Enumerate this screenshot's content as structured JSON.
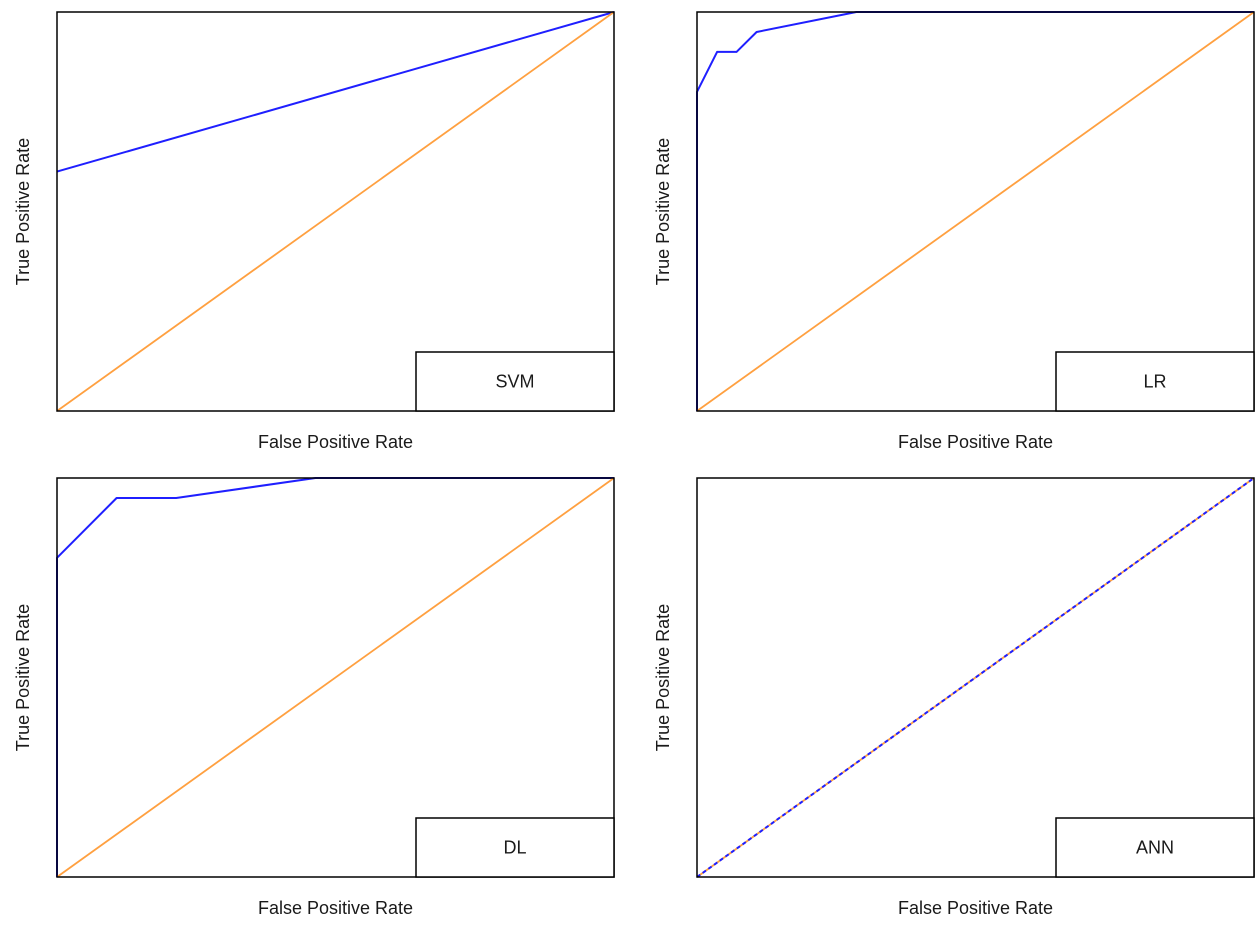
{
  "colors": {
    "roc": "#1f1fff",
    "chance": "#ffa040",
    "frame": "#000000"
  },
  "chart_data": [
    {
      "type": "line",
      "xlabel": "False Positive Rate",
      "ylabel": "True Positive Rate",
      "xlim": [
        0,
        1
      ],
      "ylim": [
        0,
        1
      ],
      "legend": {
        "label": "SVM",
        "placement": "bottom-right"
      },
      "series": [
        {
          "role": "roc",
          "x": [
            0,
            1
          ],
          "y": [
            0.6,
            1.0
          ]
        },
        {
          "role": "chance",
          "x": [
            0,
            1
          ],
          "y": [
            0,
            1
          ]
        }
      ]
    },
    {
      "type": "line",
      "xlabel": "False Positive Rate",
      "ylabel": "True Positive Rate",
      "xlim": [
        0,
        1
      ],
      "ylim": [
        0,
        1
      ],
      "legend": {
        "label": "LR",
        "placement": "bottom-right"
      },
      "series": [
        {
          "role": "roc",
          "x": [
            0,
            0,
            0.036,
            0.071,
            0.107,
            0.286,
            1
          ],
          "y": [
            0,
            0.8,
            0.9,
            0.9,
            0.95,
            1.0,
            1.0
          ]
        },
        {
          "role": "chance",
          "x": [
            0,
            1
          ],
          "y": [
            0,
            1
          ]
        }
      ]
    },
    {
      "type": "line",
      "xlabel": "False Positive Rate",
      "ylabel": "True Positive Rate",
      "xlim": [
        0,
        1
      ],
      "ylim": [
        0,
        1
      ],
      "legend": {
        "label": "DL",
        "placement": "bottom-right"
      },
      "series": [
        {
          "role": "roc",
          "x": [
            0,
            0,
            0.107,
            0.214,
            0.464,
            1
          ],
          "y": [
            0,
            0.8,
            0.95,
            0.95,
            1.0,
            1.0
          ]
        },
        {
          "role": "chance",
          "x": [
            0,
            1
          ],
          "y": [
            0,
            1
          ]
        }
      ]
    },
    {
      "type": "line",
      "xlabel": "False Positive Rate",
      "ylabel": "True Positive Rate",
      "xlim": [
        0,
        1
      ],
      "ylim": [
        0,
        1
      ],
      "legend": {
        "label": "ANN",
        "placement": "bottom-right"
      },
      "series": [
        {
          "role": "chance",
          "x": [
            0,
            1
          ],
          "y": [
            0,
            1
          ]
        },
        {
          "role": "roc",
          "dashed": true,
          "x": [
            0,
            1
          ],
          "y": [
            0,
            1
          ]
        }
      ]
    }
  ]
}
